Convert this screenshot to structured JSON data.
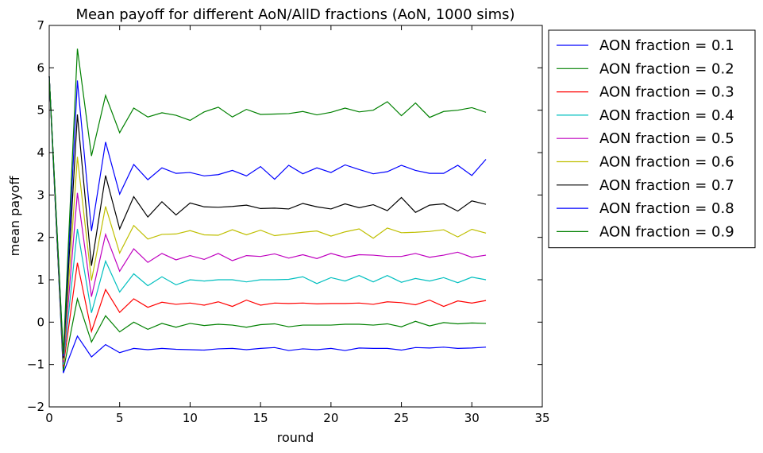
{
  "chart_data": {
    "type": "line",
    "title": "Mean payoff for different AoN/AllD fractions (AoN, 1000 sims)",
    "xlabel": "round",
    "ylabel": "mean payoff",
    "xlim": [
      0,
      35
    ],
    "ylim": [
      -2,
      7
    ],
    "xticks": [
      0,
      5,
      10,
      15,
      20,
      25,
      30,
      35
    ],
    "yticks": [
      -2,
      -1,
      0,
      1,
      2,
      3,
      4,
      5,
      6,
      7
    ],
    "grid": false,
    "legend_position": "outside-right",
    "x": [
      0,
      1,
      2,
      3,
      4,
      5,
      6,
      7,
      8,
      9,
      10,
      11,
      12,
      13,
      14,
      15,
      16,
      17,
      18,
      19,
      20,
      21,
      22,
      23,
      24,
      25,
      26,
      27,
      28,
      29,
      30,
      31
    ],
    "series": [
      {
        "name": "AON fraction = 0.1",
        "color": "#0000ff",
        "values": [
          5.8,
          -1.2,
          -0.33,
          -0.82,
          -0.53,
          -0.72,
          -0.62,
          -0.65,
          -0.62,
          -0.64,
          -0.65,
          -0.66,
          -0.63,
          -0.62,
          -0.65,
          -0.62,
          -0.6,
          -0.67,
          -0.63,
          -0.65,
          -0.62,
          -0.67,
          -0.61,
          -0.62,
          -0.62,
          -0.66,
          -0.6,
          -0.61,
          -0.59,
          -0.62,
          -0.61,
          -0.59
        ]
      },
      {
        "name": "AON fraction = 0.2",
        "color": "#008000",
        "values": [
          5.8,
          -1.15,
          0.55,
          -0.47,
          0.15,
          -0.23,
          0.0,
          -0.17,
          -0.03,
          -0.12,
          -0.03,
          -0.08,
          -0.05,
          -0.07,
          -0.12,
          -0.06,
          -0.04,
          -0.11,
          -0.07,
          -0.07,
          -0.07,
          -0.05,
          -0.05,
          -0.07,
          -0.04,
          -0.11,
          0.02,
          -0.09,
          -0.01,
          -0.04,
          -0.02,
          -0.03
        ]
      },
      {
        "name": "AON fraction = 0.3",
        "color": "#ff0000",
        "values": [
          5.8,
          -1.05,
          1.4,
          -0.22,
          0.77,
          0.23,
          0.55,
          0.35,
          0.47,
          0.42,
          0.45,
          0.4,
          0.48,
          0.37,
          0.52,
          0.4,
          0.45,
          0.44,
          0.45,
          0.43,
          0.44,
          0.44,
          0.45,
          0.42,
          0.48,
          0.46,
          0.41,
          0.52,
          0.37,
          0.5,
          0.45,
          0.51
        ]
      },
      {
        "name": "AON fraction = 0.4",
        "color": "#00bfbf",
        "values": [
          5.8,
          -1.0,
          2.2,
          0.22,
          1.44,
          0.71,
          1.14,
          0.86,
          1.07,
          0.88,
          1.0,
          0.97,
          1.0,
          1.0,
          0.95,
          1.0,
          1.0,
          1.01,
          1.07,
          0.91,
          1.05,
          0.97,
          1.1,
          0.95,
          1.1,
          0.94,
          1.03,
          0.97,
          1.05,
          0.93,
          1.06,
          1.0
        ]
      },
      {
        "name": "AON fraction = 0.5",
        "color": "#bf00bf",
        "values": [
          5.8,
          -0.95,
          3.05,
          0.6,
          2.07,
          1.2,
          1.73,
          1.41,
          1.62,
          1.47,
          1.57,
          1.48,
          1.62,
          1.45,
          1.57,
          1.55,
          1.61,
          1.51,
          1.59,
          1.5,
          1.62,
          1.53,
          1.59,
          1.58,
          1.55,
          1.55,
          1.62,
          1.53,
          1.58,
          1.65,
          1.53,
          1.58
        ]
      },
      {
        "name": "AON fraction = 0.6",
        "color": "#bfbf00",
        "values": [
          5.8,
          -0.9,
          3.9,
          0.98,
          2.73,
          1.63,
          2.28,
          1.96,
          2.07,
          2.08,
          2.16,
          2.06,
          2.05,
          2.18,
          2.06,
          2.17,
          2.04,
          2.08,
          2.12,
          2.15,
          2.03,
          2.13,
          2.2,
          1.98,
          2.22,
          2.11,
          2.12,
          2.14,
          2.18,
          2.01,
          2.19,
          2.1
        ]
      },
      {
        "name": "AON fraction = 0.7",
        "color": "#000000",
        "values": [
          5.8,
          -0.85,
          4.9,
          1.33,
          3.46,
          2.2,
          2.96,
          2.48,
          2.84,
          2.53,
          2.81,
          2.72,
          2.71,
          2.73,
          2.76,
          2.68,
          2.69,
          2.67,
          2.8,
          2.72,
          2.67,
          2.79,
          2.7,
          2.77,
          2.63,
          2.94,
          2.59,
          2.76,
          2.79,
          2.62,
          2.86,
          2.78
        ]
      },
      {
        "name": "AON fraction = 0.8",
        "color": "#0000ff",
        "values": [
          5.8,
          -0.8,
          5.7,
          2.15,
          4.25,
          3.02,
          3.72,
          3.36,
          3.64,
          3.51,
          3.53,
          3.45,
          3.48,
          3.58,
          3.45,
          3.67,
          3.37,
          3.7,
          3.5,
          3.64,
          3.53,
          3.71,
          3.6,
          3.5,
          3.55,
          3.7,
          3.58,
          3.51,
          3.51,
          3.7,
          3.46,
          3.84
        ]
      },
      {
        "name": "AON fraction = 0.9",
        "color": "#008000",
        "values": [
          5.8,
          -0.75,
          6.45,
          3.92,
          5.35,
          4.47,
          5.05,
          4.84,
          4.94,
          4.88,
          4.76,
          4.96,
          5.07,
          4.84,
          5.02,
          4.9,
          4.91,
          4.92,
          4.97,
          4.89,
          4.95,
          5.05,
          4.96,
          5.0,
          5.2,
          4.87,
          5.17,
          4.83,
          4.97,
          5.0,
          5.06,
          4.95
        ]
      }
    ]
  }
}
